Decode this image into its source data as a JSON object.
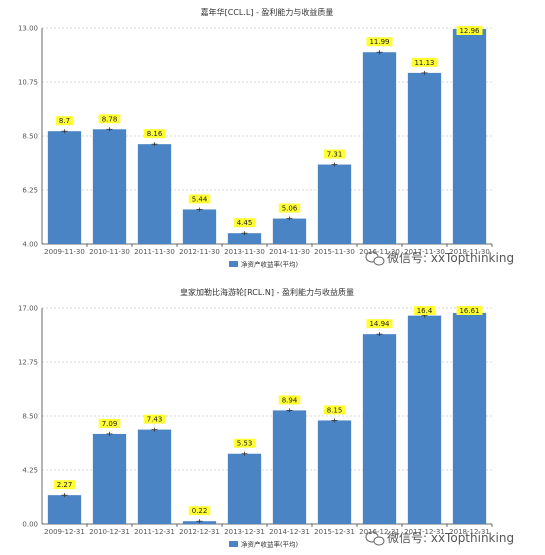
{
  "chart_data": [
    {
      "type": "bar",
      "title": "嘉年华[CCL.L] - 盈利能力与收益质量",
      "categories": [
        "2009-11-30",
        "2010-11-30",
        "2011-11-30",
        "2012-11-30",
        "2013-11-30",
        "2014-11-30",
        "2015-11-30",
        "2016-11-30",
        "2017-11-30",
        "2018-11-30"
      ],
      "series": [
        {
          "name": "净资产收益率(平均)",
          "values": [
            8.7,
            8.78,
            8.16,
            5.44,
            4.45,
            5.06,
            7.31,
            11.99,
            11.13,
            12.96
          ]
        }
      ],
      "yticks": [
        "4.00",
        "6.25",
        "8.50",
        "10.75",
        "13.00"
      ],
      "ylim": [
        4.0,
        13.0
      ],
      "grid": true,
      "legend": "bottom-center",
      "bar_color": "#4a84c4",
      "label_bg": "#ffff33"
    },
    {
      "type": "bar",
      "title": "皇家加勒比海游轮[RCL.N] - 盈利能力与收益质量",
      "categories": [
        "2009-12-31",
        "2010-12-31",
        "2011-12-31",
        "2012-12-31",
        "2013-12-31",
        "2014-12-31",
        "2015-12-31",
        "2016-12-31",
        "2017-12-31",
        "2018-12-31"
      ],
      "series": [
        {
          "name": "净资产收益率(平均)",
          "values": [
            2.27,
            7.09,
            7.43,
            0.22,
            5.53,
            8.94,
            8.15,
            14.94,
            16.4,
            16.61
          ]
        }
      ],
      "yticks": [
        "0.00",
        "4.25",
        "8.50",
        "12.75",
        "17.00"
      ],
      "ylim": [
        0.0,
        17.0
      ],
      "grid": true,
      "legend": "bottom-center",
      "bar_color": "#4a84c4",
      "label_bg": "#ffff33"
    }
  ],
  "watermark": {
    "text": "微信号: xxTopthinking",
    "icon": "wechat-icon"
  }
}
